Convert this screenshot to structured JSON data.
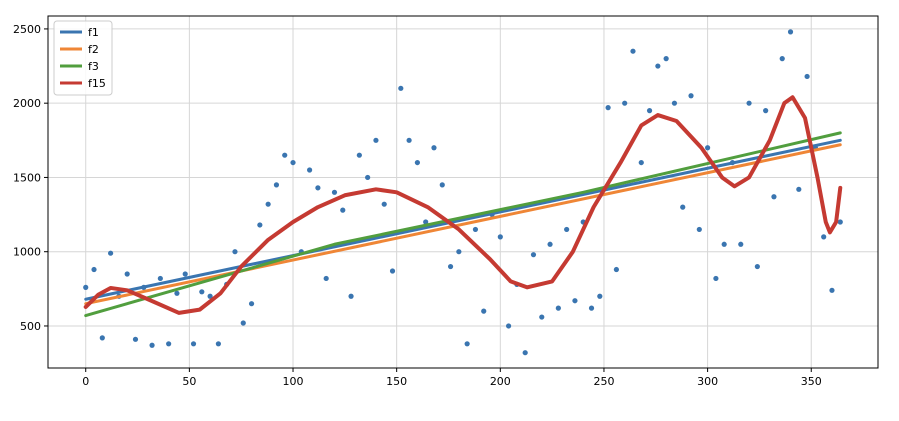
{
  "chart_data": {
    "type": "scatter",
    "x": [
      0,
      4,
      8,
      12,
      16,
      20,
      24,
      28,
      32,
      36,
      40,
      44,
      48,
      52,
      56,
      60,
      64,
      68,
      72,
      76,
      80,
      84,
      88,
      92,
      96,
      100,
      104,
      108,
      112,
      116,
      120,
      124,
      128,
      132,
      136,
      140,
      144,
      148,
      152,
      156,
      160,
      164,
      168,
      172,
      176,
      180,
      184,
      188,
      192,
      196,
      200,
      204,
      208,
      212,
      216,
      220,
      224,
      228,
      232,
      236,
      240,
      244,
      248,
      252,
      256,
      260,
      264,
      268,
      272,
      276,
      280,
      284,
      288,
      292,
      296,
      300,
      304,
      308,
      312,
      316,
      320,
      324,
      328,
      332,
      336,
      340,
      344,
      348,
      352,
      356,
      360,
      364
    ],
    "values": [
      760,
      880,
      420,
      990,
      700,
      850,
      410,
      760,
      370,
      820,
      380,
      720,
      850,
      380,
      730,
      700,
      380,
      780,
      1000,
      520,
      650,
      1180,
      1320,
      1450,
      1650,
      1600,
      1000,
      1550,
      1430,
      820,
      1400,
      1280,
      700,
      1650,
      1500,
      1750,
      1320,
      870,
      2100,
      1750,
      1600,
      1200,
      1700,
      1450,
      900,
      1000,
      380,
      1150,
      600,
      1250,
      1100,
      500,
      780,
      320,
      980,
      560,
      1050,
      620,
      1150,
      670,
      1200,
      620,
      700,
      1970,
      880,
      2000,
      2350,
      1600,
      1950,
      2250,
      2300,
      2000,
      1300,
      2050,
      1150,
      1700,
      820,
      1050,
      1600,
      1050,
      2000,
      900,
      1950,
      1370,
      2300,
      2480,
      1420,
      2180,
      1700,
      1100,
      740,
      1200
    ],
    "color": "#3a75b0",
    "lines": [
      {
        "name": "f1",
        "color": "#3a75b0",
        "x": [
          0,
          364
        ],
        "values": [
          680,
          1750
        ]
      },
      {
        "name": "f2",
        "color": "#ef8636",
        "x": [
          0,
          364
        ],
        "values": [
          650,
          1720
        ]
      },
      {
        "name": "f3",
        "color": "#519e3e",
        "x": [
          0,
          120,
          240,
          364
        ],
        "values": [
          570,
          1050,
          1400,
          1800
        ]
      },
      {
        "name": "f15",
        "color": "#c53a32",
        "x": [
          0,
          6,
          12,
          20,
          30,
          45,
          55,
          65,
          75,
          88,
          100,
          112,
          125,
          140,
          150,
          165,
          180,
          195,
          205,
          213,
          225,
          235,
          245,
          258,
          268,
          276,
          285,
          297,
          307,
          313,
          320,
          330,
          337,
          341,
          347,
          353,
          357,
          359,
          362,
          364
        ],
        "values": [
          628,
          710,
          756,
          740,
          680,
          588,
          610,
          720,
          900,
          1080,
          1200,
          1300,
          1380,
          1420,
          1400,
          1300,
          1150,
          950,
          800,
          760,
          800,
          1000,
          1300,
          1600,
          1850,
          1920,
          1880,
          1700,
          1500,
          1440,
          1500,
          1750,
          2000,
          2040,
          1900,
          1500,
          1200,
          1130,
          1200,
          1430
        ]
      }
    ],
    "xlim": [
      -18.2,
      382.2
    ],
    "ylim": [
      217,
      2587
    ],
    "xticks": [
      0,
      50,
      100,
      150,
      200,
      250,
      300,
      350
    ],
    "yticks": [
      500,
      1000,
      1500,
      2000,
      2500
    ],
    "grid": true,
    "legend": "upper left"
  }
}
